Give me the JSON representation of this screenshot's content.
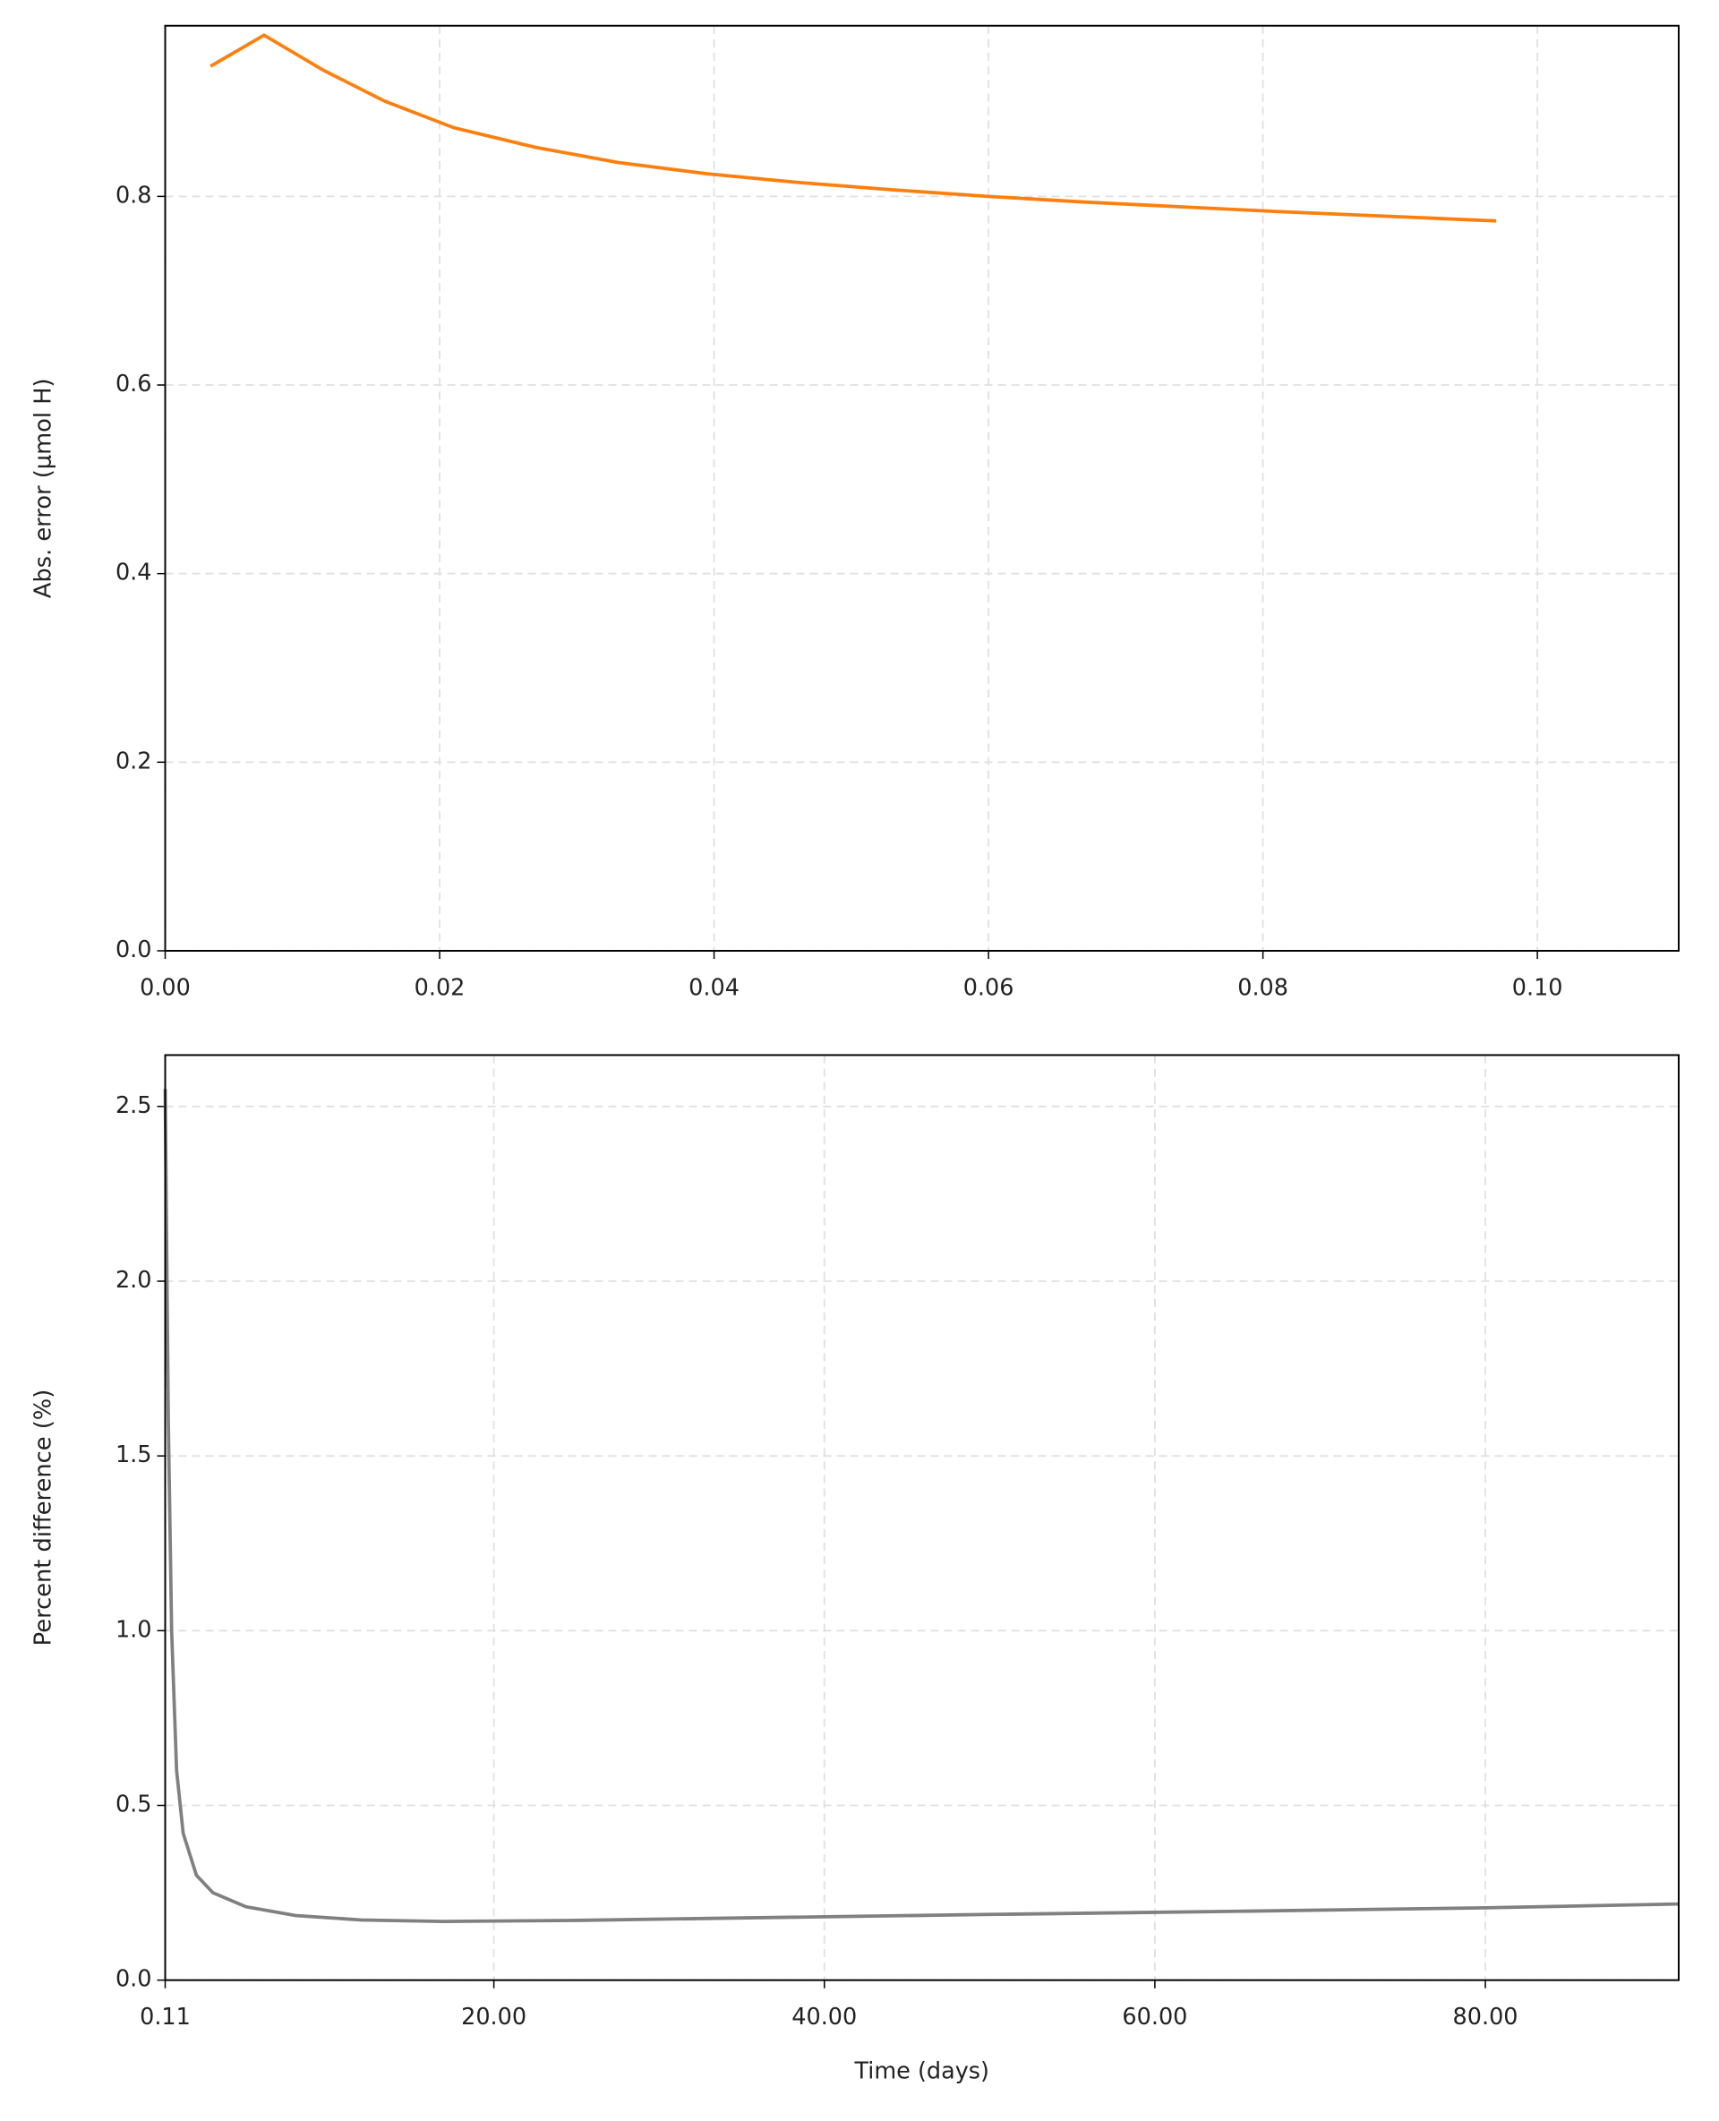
{
  "chart_data": [
    {
      "type": "line",
      "ylabel": "Abs. error (μmol H)",
      "x": [
        0.0033,
        0.0072,
        0.0115,
        0.016,
        0.021,
        0.027,
        0.033,
        0.0395,
        0.046,
        0.053,
        0.06,
        0.067,
        0.074,
        0.081,
        0.089,
        0.097
      ],
      "series": [
        {
          "color": "#ff7f0e",
          "values": [
            0.938,
            0.971,
            0.934,
            0.901,
            0.873,
            0.852,
            0.836,
            0.824,
            0.815,
            0.807,
            0.8,
            0.794,
            0.789,
            0.784,
            0.779,
            0.774
          ]
        }
      ],
      "xlim": [
        0,
        0.1103
      ],
      "ylim": [
        0,
        0.981
      ],
      "xticks": [
        {
          "value": 0,
          "label": "0.00"
        },
        0.02,
        0.04,
        0.06,
        0.08,
        {
          "value": 0.1,
          "label": "0.10"
        }
      ],
      "yticks": [
        {
          "value": 0,
          "label": "0.0"
        },
        0.2,
        0.4,
        0.6,
        0.8
      ],
      "grid": true
    },
    {
      "type": "line",
      "xlabel": "Time (days)",
      "ylabel": "Percent difference (%)",
      "x": [
        0.11,
        0.3,
        0.5,
        0.8,
        1.2,
        2,
        3,
        5,
        8,
        12,
        17,
        25,
        35,
        50,
        65,
        80,
        91.7
      ],
      "series": [
        {
          "color": "#808080",
          "values": [
            2.55,
            1.6,
            1.0,
            0.6,
            0.42,
            0.3,
            0.25,
            0.21,
            0.185,
            0.172,
            0.168,
            0.171,
            0.178,
            0.188,
            0.197,
            0.207,
            0.218
          ]
        }
      ],
      "xlim": [
        0.11,
        91.7
      ],
      "ylim": [
        0,
        2.647
      ],
      "xticks": [
        0.11,
        {
          "value": 20,
          "label": "20.00"
        },
        {
          "value": 40,
          "label": "40.00"
        },
        {
          "value": 60,
          "label": "60.00"
        },
        {
          "value": 80,
          "label": "80.00"
        }
      ],
      "yticks": [
        {
          "value": 0,
          "label": "0.0"
        },
        0.5,
        {
          "value": 1,
          "label": "1.0"
        },
        1.5,
        {
          "value": 2,
          "label": "2.0"
        },
        2.5
      ],
      "grid": true
    }
  ]
}
